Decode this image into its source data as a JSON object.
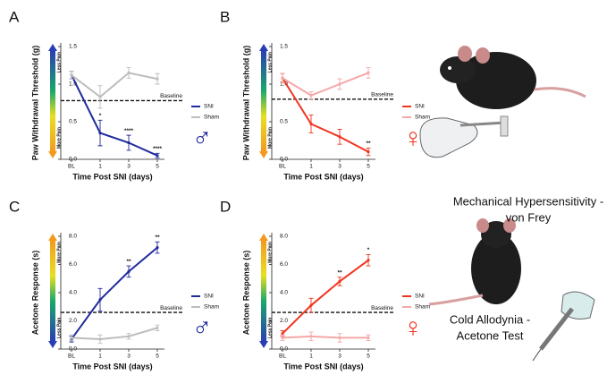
{
  "chart_data": [
    {
      "type": "line",
      "panel": "A",
      "x_label": "Time Post SNI (days)",
      "y_label": "Paw Withdrawal Threshold (g)",
      "categories": [
        "BL",
        "1",
        "3",
        "5"
      ],
      "ylim": [
        0,
        1.5
      ],
      "yticks": [
        {
          "value": 0,
          "label": "0.0"
        },
        0.5,
        {
          "value": 1,
          "label": "1.0"
        },
        1.5
      ],
      "series": [
        {
          "name": "SNI",
          "color": "#1f2a9c",
          "values": [
            1.12,
            0.35,
            0.22,
            0.05
          ],
          "errors": [
            0.05,
            0.17,
            0.1,
            0.03
          ]
        },
        {
          "name": "Sham",
          "color": "#bdbdbd",
          "values": [
            1.12,
            0.83,
            1.15,
            1.07
          ],
          "errors": [
            0.05,
            0.15,
            0.07,
            0.07
          ]
        }
      ],
      "significance": [
        null,
        "*",
        "****",
        "****"
      ],
      "baseline": {
        "value": 0.78,
        "label": "Baseline"
      },
      "pain_scale": {
        "top": "Less Pain",
        "bottom": "More Pain"
      },
      "sex_symbol": "♂"
    },
    {
      "type": "line",
      "panel": "B",
      "x_label": "Time Post SNI (days)",
      "y_label": "Paw Withdrawal Threshold (g)",
      "categories": [
        "BL",
        "1",
        "3",
        "5"
      ],
      "ylim": [
        0,
        1.5
      ],
      "yticks": [
        {
          "value": 0,
          "label": "0.0"
        },
        0.5,
        {
          "value": 1,
          "label": "1.0"
        },
        1.5
      ],
      "series": [
        {
          "name": "SNI",
          "color": "#f0351f",
          "values": [
            1.08,
            0.47,
            0.3,
            0.1
          ],
          "errors": [
            0.06,
            0.12,
            0.1,
            0.05
          ]
        },
        {
          "name": "Sham",
          "color": "#f5a8a8",
          "values": [
            1.08,
            0.85,
            1.0,
            1.15
          ],
          "errors": [
            0.06,
            0.05,
            0.07,
            0.07
          ]
        }
      ],
      "significance": [
        null,
        null,
        null,
        "**"
      ],
      "baseline": {
        "value": 0.8,
        "label": "Baseline"
      },
      "pain_scale": {
        "top": "Less Pain",
        "bottom": "More Pain"
      },
      "sex_symbol": "♀"
    },
    {
      "type": "line",
      "panel": "C",
      "x_label": "Time Post SNI (days)",
      "y_label": "Acetone Response (s)",
      "categories": [
        "BL",
        "1",
        "3",
        "5"
      ],
      "ylim": [
        0,
        8
      ],
      "yticks": [
        {
          "value": 0,
          "label": "0.0"
        },
        {
          "value": 2,
          "label": "2.0"
        },
        {
          "value": 4,
          "label": "4.0"
        },
        {
          "value": 6,
          "label": "6.0"
        },
        {
          "value": 8,
          "label": "8.0"
        }
      ],
      "series": [
        {
          "name": "SNI",
          "color": "#1f2a9c",
          "values": [
            0.7,
            3.5,
            5.5,
            7.2
          ],
          "errors": [
            0.2,
            0.8,
            0.4,
            0.4
          ]
        },
        {
          "name": "Sham",
          "color": "#bdbdbd",
          "values": [
            0.8,
            0.7,
            0.9,
            1.5
          ],
          "errors": [
            0.2,
            0.3,
            0.2,
            0.2
          ]
        }
      ],
      "significance": [
        null,
        null,
        "**",
        "**"
      ],
      "baseline": {
        "value": 2.6,
        "label": "Baseline"
      },
      "pain_scale": {
        "top": "More Pain",
        "bottom": "Less Pain"
      },
      "sex_symbol": "♂"
    },
    {
      "type": "line",
      "panel": "D",
      "x_label": "Time Post SNI (days)",
      "y_label": "Acetone Response (s)",
      "categories": [
        "BL",
        "1",
        "3",
        "5"
      ],
      "ylim": [
        0,
        8
      ],
      "yticks": [
        {
          "value": 0,
          "label": "0.0"
        },
        {
          "value": 2,
          "label": "2.0"
        },
        {
          "value": 4,
          "label": "4.0"
        },
        {
          "value": 6,
          "label": "6.0"
        },
        {
          "value": 8,
          "label": "8.0"
        }
      ],
      "series": [
        {
          "name": "SNI",
          "color": "#f0351f",
          "values": [
            1.1,
            3.1,
            4.8,
            6.3
          ],
          "errors": [
            0.2,
            0.5,
            0.3,
            0.4
          ]
        },
        {
          "name": "Sham",
          "color": "#f5a8a8",
          "values": [
            0.8,
            0.9,
            0.8,
            0.8
          ],
          "errors": [
            0.2,
            0.3,
            0.3,
            0.2
          ]
        }
      ],
      "significance": [
        null,
        null,
        "**",
        "*"
      ],
      "baseline": {
        "value": 2.6,
        "label": "Baseline"
      },
      "pain_scale": {
        "top": "More Pain",
        "bottom": "Less Pain"
      },
      "sex_symbol": "♀"
    }
  ],
  "illustrations": [
    {
      "lines": [
        "Mechanical Hypersensitivity -",
        "von Frey"
      ]
    },
    {
      "lines": [
        "Cold Allodynia -",
        "Acetone Test"
      ]
    }
  ]
}
